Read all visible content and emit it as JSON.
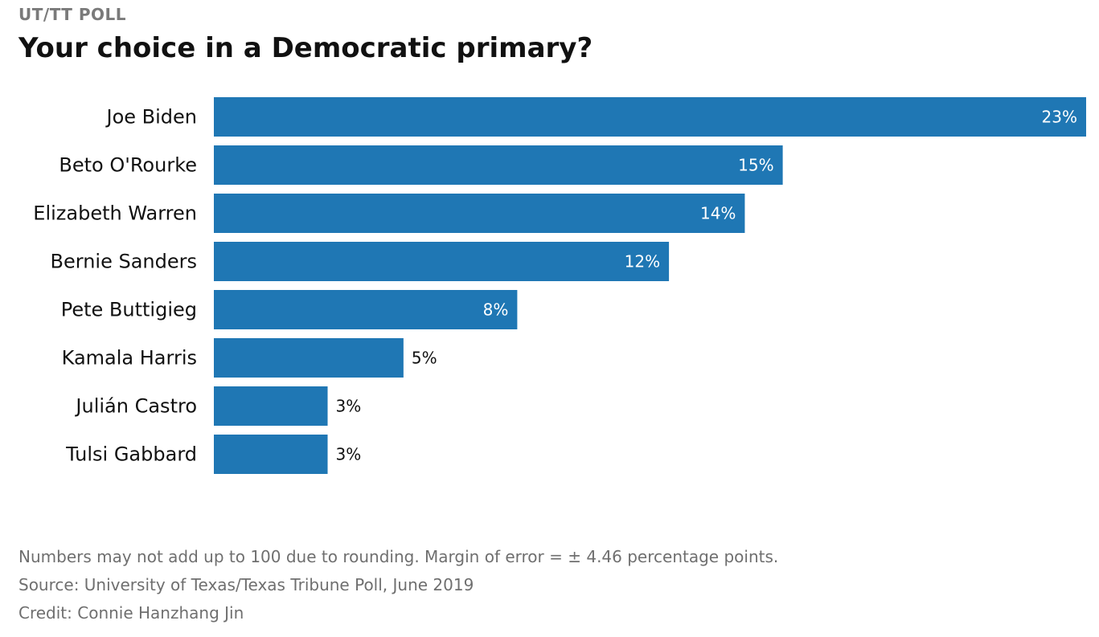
{
  "kicker": "UT/TT POLL",
  "chart_data": {
    "type": "bar",
    "orientation": "horizontal",
    "title": "Your choice in a Democratic primary?",
    "categories": [
      "Joe Biden",
      "Beto O'Rourke",
      "Elizabeth Warren",
      "Bernie Sanders",
      "Pete Buttigieg",
      "Kamala Harris",
      "Julián Castro",
      "Tulsi Gabbard"
    ],
    "values": [
      23,
      15,
      14,
      12,
      8,
      5,
      3,
      3
    ],
    "value_labels": [
      "23%",
      "15%",
      "14%",
      "12%",
      "8%",
      "5%",
      "3%",
      "3%"
    ],
    "xlim": [
      0,
      23
    ],
    "grid": false,
    "bar_color": "#1f77b4"
  },
  "notes": {
    "margin": "Numbers may not add up to 100 due to rounding. Margin of error = ± 4.46 percentage points.",
    "source": "Source: University of Texas/Texas Tribune Poll, June 2019",
    "credit": "Credit: Connie Hanzhang Jin"
  },
  "colors": {
    "bar": "#1f77b4",
    "label_inside": "#ffffff",
    "label_outside": "#111111",
    "kicker": "#7a7a7a",
    "footnote": "#6f6f6f"
  }
}
